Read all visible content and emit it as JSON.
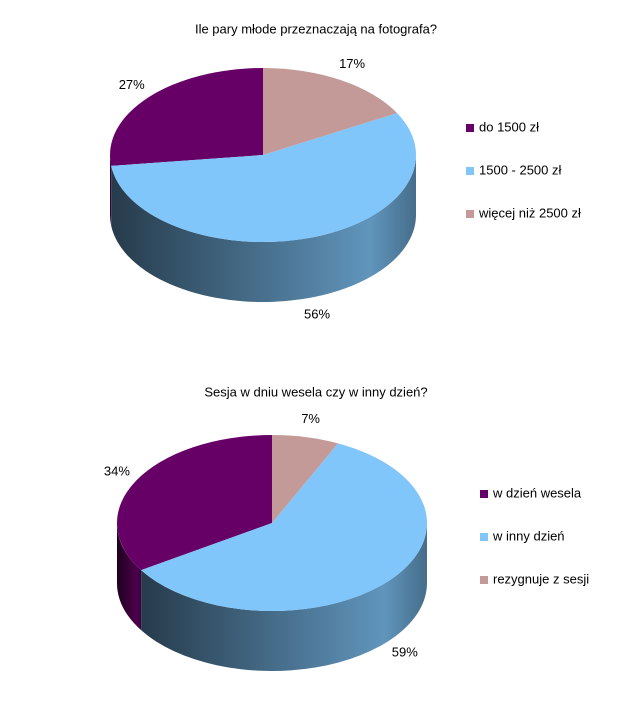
{
  "chart_data": [
    {
      "type": "pie",
      "title": "Ile pary młode przeznaczają na fotografa?",
      "categories": [
        "do 1500 zł",
        "1500 - 2500 zł",
        "więcej niż 2500 zł"
      ],
      "values": [
        27,
        56,
        17
      ],
      "value_labels": [
        "27%",
        "56%",
        "17%"
      ],
      "colors": [
        "#660066",
        "#80c6fa",
        "#c49a98"
      ],
      "legend": "right"
    },
    {
      "type": "pie",
      "title": "Sesja w dniu wesela czy w inny dzień?",
      "categories": [
        "w dzień wesela",
        "w inny dzień",
        "rezygnuje z sesji"
      ],
      "values": [
        34,
        59,
        7
      ],
      "value_labels": [
        "34%",
        "59%",
        "7%"
      ],
      "colors": [
        "#660066",
        "#80c6fa",
        "#c49a98"
      ],
      "legend": "right"
    }
  ]
}
